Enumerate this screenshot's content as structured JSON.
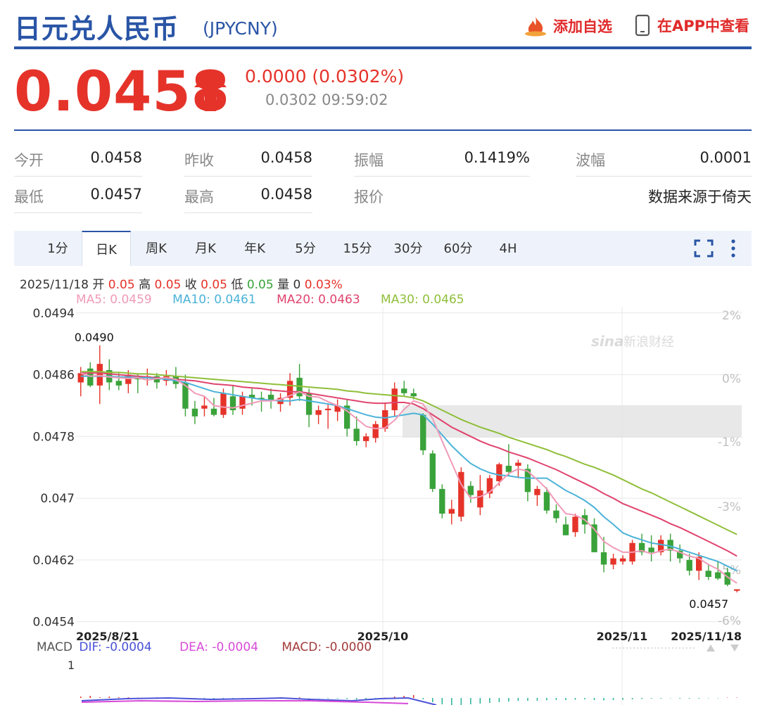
{
  "header": {
    "title": "日元兑人民币",
    "code": "(JPYCNY)",
    "add_favorite": "添加自选",
    "view_in_app": "在APP中查看"
  },
  "quote": {
    "price": "0.0458",
    "direction": "up",
    "change": "0.0000 (0.0302%)",
    "sub_info": "0.0302 09:59:02"
  },
  "stats": {
    "row1": [
      {
        "label": "今开",
        "value": "0.0458"
      },
      {
        "label": "昨收",
        "value": "0.0458"
      },
      {
        "label": "振幅",
        "value": "0.1419%"
      },
      {
        "label": "波幅",
        "value": "0.0001"
      }
    ],
    "row2": [
      {
        "label": "最低",
        "value": "0.0457"
      },
      {
        "label": "最高",
        "value": "0.0458"
      },
      {
        "label": "报价",
        "value": "数据来源于倚天"
      }
    ]
  },
  "tabs": [
    "1分",
    "日K",
    "周K",
    "月K",
    "年K",
    "5分",
    "15分",
    "30分",
    "60分",
    "4H"
  ],
  "active_tab": "日K",
  "toolbar_icons": [
    "fullscreen-icon",
    "more-vertical-icon"
  ],
  "bar_info": {
    "date": "2025/11/18",
    "open_label": "开",
    "open": "0.05",
    "high_label": "高",
    "high": "0.05",
    "close_label": "收",
    "close": "0.05",
    "low_label": "低",
    "low": "0.05",
    "volume_label": "量",
    "volume": "0",
    "change_pct": "0.03%"
  },
  "ma": {
    "ma5": "MA5: 0.0459",
    "ma10": "MA10: 0.0461",
    "ma20": "MA20: 0.0463",
    "ma30": "MA30: 0.0465"
  },
  "macd": {
    "label": "MACD",
    "dif": "DIF: -0.0004",
    "dea": "DEA: -0.0004",
    "macd": "MACD: -0.0000",
    "axis_top": "1"
  },
  "watermark": "新浪财经",
  "colors": {
    "brand_blue": "#2a55a6",
    "up_red": "#e5332a",
    "down_green": "#3aa23a",
    "ma5": "#f09ab8",
    "ma10": "#4bb3d8",
    "ma20": "#e0446e",
    "ma30": "#8fbf3a"
  },
  "chart_data": {
    "type": "candlestick",
    "y_ticks": [
      "0.0494",
      "0.0486",
      "0.0478",
      "0.047",
      "0.0462",
      "0.0454"
    ],
    "y_tick_values": [
      0.0494,
      0.0486,
      0.0478,
      0.047,
      0.0462,
      0.0454
    ],
    "pct_ticks": [
      "2%",
      "0%",
      "-1%",
      "-3%",
      "-5%",
      "-6%"
    ],
    "x_labels": [
      "2025/8/21",
      "2025/10",
      "2025/11",
      "2025/11/18"
    ],
    "ylim": [
      0.04536,
      0.04948
    ],
    "max_label": "0.0490",
    "min_label": "0.0457",
    "ohlc": [
      [
        0.0485,
        0.0487,
        0.04832,
        0.04862
      ],
      [
        0.04868,
        0.04876,
        0.04844,
        0.04846
      ],
      [
        0.04846,
        0.04898,
        0.04822,
        0.04874
      ],
      [
        0.04866,
        0.0488,
        0.0484,
        0.0485
      ],
      [
        0.04852,
        0.04862,
        0.0484,
        0.04846
      ],
      [
        0.04848,
        0.04866,
        0.04836,
        0.0486
      ],
      [
        0.04856,
        0.04862,
        0.04836,
        0.04854
      ],
      [
        0.04856,
        0.04868,
        0.04846,
        0.04858
      ],
      [
        0.04858,
        0.04862,
        0.04842,
        0.0485
      ],
      [
        0.04852,
        0.04866,
        0.04846,
        0.04858
      ],
      [
        0.04858,
        0.0487,
        0.04842,
        0.04848
      ],
      [
        0.0485,
        0.0486,
        0.04806,
        0.04816
      ],
      [
        0.04816,
        0.04826,
        0.04796,
        0.04806
      ],
      [
        0.04816,
        0.04832,
        0.04806,
        0.0482
      ],
      [
        0.04816,
        0.0483,
        0.04806,
        0.04808
      ],
      [
        0.04808,
        0.04842,
        0.04804,
        0.04836
      ],
      [
        0.04832,
        0.04846,
        0.04808,
        0.04814
      ],
      [
        0.04816,
        0.04838,
        0.04808,
        0.04832
      ],
      [
        0.04834,
        0.04842,
        0.0482,
        0.0483
      ],
      [
        0.0483,
        0.04838,
        0.04812,
        0.04828
      ],
      [
        0.04834,
        0.04842,
        0.04816,
        0.04826
      ],
      [
        0.04822,
        0.04836,
        0.04812,
        0.0483
      ],
      [
        0.0483,
        0.04862,
        0.0482,
        0.04852
      ],
      [
        0.04856,
        0.04874,
        0.04826,
        0.04832
      ],
      [
        0.04836,
        0.04842,
        0.04792,
        0.04808
      ],
      [
        0.04808,
        0.0482,
        0.04796,
        0.04814
      ],
      [
        0.04814,
        0.04822,
        0.0479,
        0.04816
      ],
      [
        0.04812,
        0.04828,
        0.048,
        0.0482
      ],
      [
        0.0482,
        0.04828,
        0.0478,
        0.0479
      ],
      [
        0.0479,
        0.04806,
        0.04768,
        0.04774
      ],
      [
        0.04774,
        0.04784,
        0.04766,
        0.0478
      ],
      [
        0.04778,
        0.048,
        0.04772,
        0.04796
      ],
      [
        0.0479,
        0.04824,
        0.04786,
        0.04814
      ],
      [
        0.04814,
        0.0485,
        0.04806,
        0.04842
      ],
      [
        0.04842,
        0.04852,
        0.04832,
        0.04836
      ],
      [
        0.04836,
        0.04842,
        0.04828,
        0.04832
      ],
      [
        0.04808,
        0.0481,
        0.04756,
        0.04762
      ],
      [
        0.04758,
        0.04762,
        0.04708,
        0.04712
      ],
      [
        0.04712,
        0.04718,
        0.04674,
        0.0468
      ],
      [
        0.0468,
        0.04698,
        0.04666,
        0.04686
      ],
      [
        0.04676,
        0.0474,
        0.0467,
        0.04734
      ],
      [
        0.04716,
        0.04722,
        0.04694,
        0.04704
      ],
      [
        0.04688,
        0.0473,
        0.04678,
        0.0471
      ],
      [
        0.04706,
        0.0473,
        0.047,
        0.04726
      ],
      [
        0.04722,
        0.04746,
        0.04716,
        0.04744
      ],
      [
        0.04742,
        0.0477,
        0.04728,
        0.04734
      ],
      [
        0.04742,
        0.0475,
        0.04726,
        0.04746
      ],
      [
        0.04738,
        0.04744,
        0.04696,
        0.04708
      ],
      [
        0.04704,
        0.04716,
        0.0469,
        0.04712
      ],
      [
        0.04708,
        0.04714,
        0.0468,
        0.04684
      ],
      [
        0.04684,
        0.04692,
        0.04668,
        0.04674
      ],
      [
        0.04666,
        0.04676,
        0.04652,
        0.04652
      ],
      [
        0.04656,
        0.0468,
        0.0465,
        0.04676
      ],
      [
        0.04678,
        0.04686,
        0.04654,
        0.04666
      ],
      [
        0.04666,
        0.04674,
        0.04634,
        0.0463
      ],
      [
        0.0463,
        0.0465,
        0.04604,
        0.04614
      ],
      [
        0.04614,
        0.04628,
        0.04608,
        0.04622
      ],
      [
        0.04618,
        0.04626,
        0.04614,
        0.04622
      ],
      [
        0.04618,
        0.04646,
        0.04614,
        0.04642
      ],
      [
        0.04642,
        0.04654,
        0.04626,
        0.0463
      ],
      [
        0.04636,
        0.04652,
        0.04618,
        0.0463
      ],
      [
        0.0463,
        0.04652,
        0.04626,
        0.04646
      ],
      [
        0.04646,
        0.04654,
        0.04618,
        0.04632
      ],
      [
        0.04632,
        0.0464,
        0.04616,
        0.04622
      ],
      [
        0.0462,
        0.04628,
        0.046,
        0.04606
      ],
      [
        0.04606,
        0.0463,
        0.04594,
        0.04624
      ],
      [
        0.04606,
        0.04614,
        0.04594,
        0.04598
      ],
      [
        0.04604,
        0.04618,
        0.04594,
        0.04596
      ],
      [
        0.04604,
        0.0461,
        0.04586,
        0.04588
      ],
      [
        0.0458,
        0.04582,
        0.04578,
        0.04582
      ]
    ],
    "ma5": [
      0.04862,
      0.04858,
      0.04859,
      0.04857,
      0.04856,
      0.04855,
      0.04856,
      0.04853,
      0.04855,
      0.04856,
      0.04854,
      0.04846,
      0.04836,
      0.04832,
      0.0482,
      0.04818,
      0.04817,
      0.0482,
      0.04823,
      0.04826,
      0.04826,
      0.04828,
      0.04833,
      0.04838,
      0.04832,
      0.04831,
      0.04825,
      0.0482,
      0.04813,
      0.04803,
      0.04793,
      0.0479,
      0.04791,
      0.04801,
      0.04815,
      0.04826,
      0.04822,
      0.04803,
      0.04774,
      0.04746,
      0.04718,
      0.047,
      0.04702,
      0.04708,
      0.0472,
      0.04732,
      0.04738,
      0.04735,
      0.04724,
      0.04712,
      0.04695,
      0.0468,
      0.04678,
      0.04672,
      0.0466,
      0.04644,
      0.04636,
      0.0463,
      0.0463,
      0.04632,
      0.04628,
      0.04632,
      0.04634,
      0.0463,
      0.04625,
      0.04622,
      0.04614,
      0.04608,
      0.04598,
      0.0459
    ],
    "ma10": [
      0.04858,
      0.04858,
      0.04858,
      0.04858,
      0.04857,
      0.04857,
      0.04856,
      0.04856,
      0.04855,
      0.04854,
      0.04852,
      0.0485,
      0.04846,
      0.04842,
      0.04838,
      0.04836,
      0.04834,
      0.04832,
      0.0483,
      0.04828,
      0.04827,
      0.04826,
      0.04826,
      0.04828,
      0.04826,
      0.04824,
      0.04822,
      0.0482,
      0.04816,
      0.04812,
      0.04808,
      0.04805,
      0.04804,
      0.04806,
      0.04808,
      0.0481,
      0.04808,
      0.04796,
      0.04782,
      0.04768,
      0.04756,
      0.04745,
      0.04738,
      0.04733,
      0.0473,
      0.04729,
      0.04727,
      0.04726,
      0.04726,
      0.04726,
      0.04718,
      0.0471,
      0.04704,
      0.04697,
      0.04688,
      0.04676,
      0.04666,
      0.04655,
      0.0465,
      0.04646,
      0.04642,
      0.0464,
      0.04638,
      0.04634,
      0.0463,
      0.04626,
      0.04622,
      0.04618,
      0.04612,
      0.04606
    ],
    "ma20": [
      0.04862,
      0.04862,
      0.04862,
      0.04861,
      0.0486,
      0.04859,
      0.04858,
      0.04857,
      0.04856,
      0.04855,
      0.04854,
      0.04853,
      0.04852,
      0.0485,
      0.04848,
      0.04847,
      0.04846,
      0.04844,
      0.04843,
      0.04842,
      0.0484,
      0.04839,
      0.04838,
      0.04838,
      0.04836,
      0.04834,
      0.04832,
      0.0483,
      0.04828,
      0.04826,
      0.04824,
      0.04823,
      0.04823,
      0.04824,
      0.04824,
      0.04822,
      0.04816,
      0.04808,
      0.048,
      0.04792,
      0.04786,
      0.0478,
      0.04774,
      0.04769,
      0.04765,
      0.0476,
      0.04756,
      0.04752,
      0.04747,
      0.04742,
      0.04737,
      0.04731,
      0.04725,
      0.04719,
      0.04713,
      0.04706,
      0.047,
      0.04693,
      0.04688,
      0.04683,
      0.04678,
      0.04673,
      0.04667,
      0.04662,
      0.04656,
      0.0465,
      0.04644,
      0.04638,
      0.04632,
      0.04625
    ],
    "ma30": [
      0.04864,
      0.04864,
      0.04864,
      0.04863,
      0.04863,
      0.04862,
      0.04861,
      0.04861,
      0.0486,
      0.04859,
      0.04858,
      0.04857,
      0.04856,
      0.04855,
      0.04854,
      0.04853,
      0.04852,
      0.04851,
      0.0485,
      0.04849,
      0.04848,
      0.04847,
      0.04846,
      0.04845,
      0.04844,
      0.04843,
      0.04842,
      0.04841,
      0.04839,
      0.04838,
      0.04836,
      0.04835,
      0.04834,
      0.04833,
      0.04832,
      0.0483,
      0.04826,
      0.0482,
      0.04814,
      0.04808,
      0.04802,
      0.04797,
      0.04792,
      0.04788,
      0.04784,
      0.04779,
      0.04775,
      0.04771,
      0.04767,
      0.04763,
      0.04758,
      0.04754,
      0.04749,
      0.04744,
      0.0474,
      0.04735,
      0.0473,
      0.04724,
      0.04718,
      0.04712,
      0.04707,
      0.04701,
      0.04695,
      0.04689,
      0.04683,
      0.04677,
      0.04671,
      0.04665,
      0.04659,
      0.04653
    ],
    "macd_hist": [
      0.2,
      0.3,
      0.1,
      0.2,
      0.1,
      0.1,
      0.05,
      0.05,
      0.1,
      0.05,
      -0.05,
      -0.1,
      -0.2,
      -0.25,
      -0.3,
      -0.2,
      -0.15,
      -0.1,
      -0.05,
      -0.05,
      -0.05,
      -0.05,
      0.05,
      0.1,
      -0.05,
      -0.05,
      -0.1,
      -0.1,
      -0.15,
      -0.2,
      -0.15,
      -0.1,
      0.05,
      0.2,
      0.3,
      0.4,
      -0.2,
      -0.6,
      -0.9,
      -1.0,
      -1.0,
      -0.9,
      -0.8,
      -0.7,
      -0.6,
      -0.5,
      -0.4,
      -0.4,
      -0.4,
      -0.35,
      -0.3,
      -0.3,
      -0.25,
      -0.2,
      -0.3,
      -0.35,
      -0.3,
      -0.25,
      -0.2,
      -0.15,
      -0.1,
      -0.1,
      -0.05,
      -0.1,
      -0.1,
      -0.1,
      -0.05,
      -0.05,
      0.05,
      0.05
    ]
  }
}
